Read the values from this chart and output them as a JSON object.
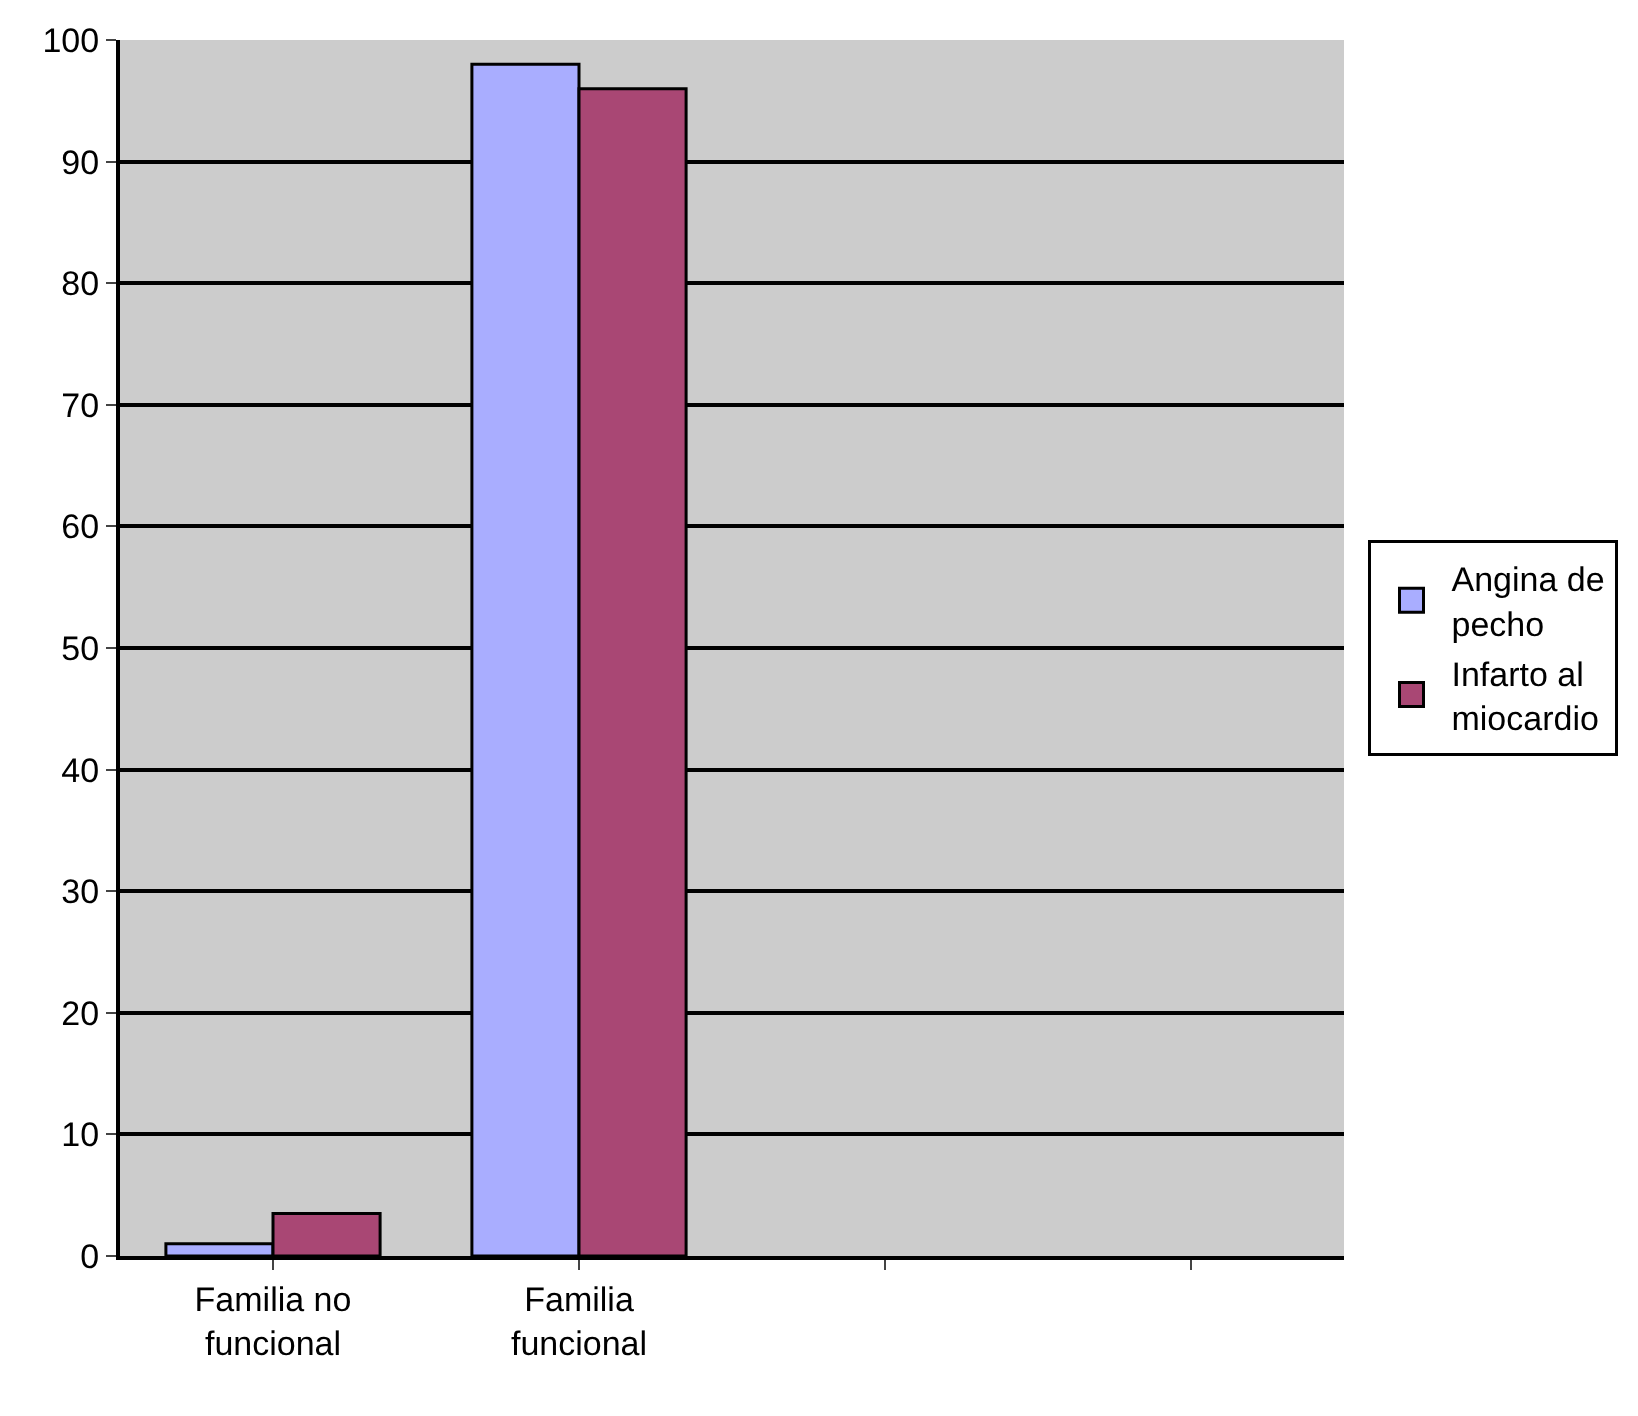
{
  "chart_data": {
    "type": "bar",
    "categories": [
      "Familia no funcional",
      "Familia funcional",
      null,
      null
    ],
    "series": [
      {
        "name": "Angina de pecho",
        "color": "#a9adff",
        "values": [
          1,
          98,
          null,
          null
        ]
      },
      {
        "name": "Infarto al miocardio",
        "color": "#a94774",
        "values": [
          3.5,
          96,
          null,
          null
        ]
      }
    ],
    "ylim": [
      0,
      100
    ],
    "yticks": [
      0,
      10,
      20,
      30,
      40,
      50,
      60,
      70,
      80,
      90,
      100
    ],
    "grid": "y",
    "legend": "right"
  }
}
